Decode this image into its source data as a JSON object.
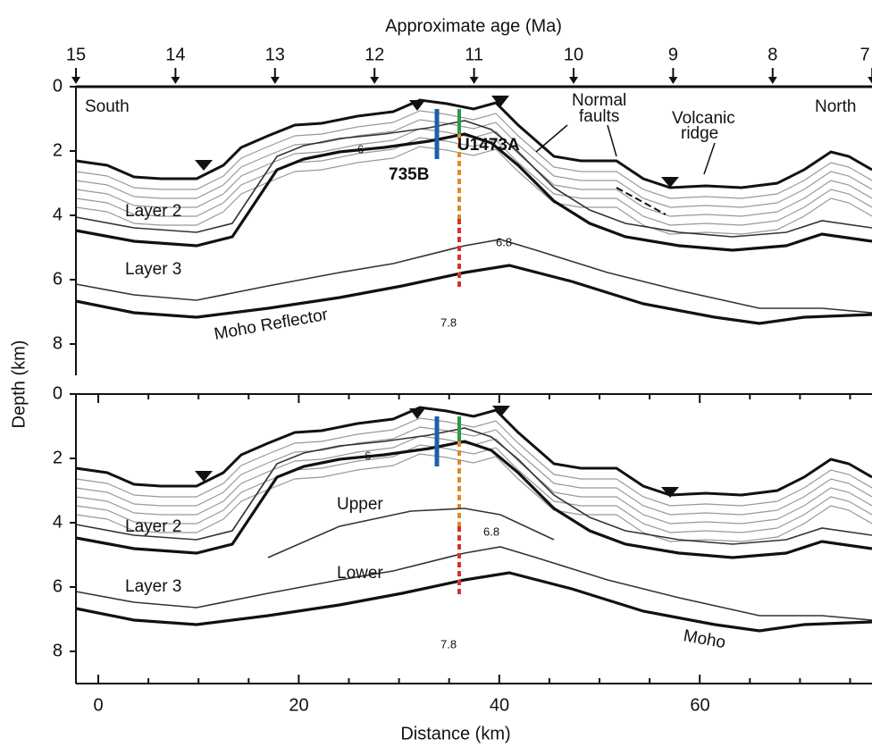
{
  "axes": {
    "top_label": "Approximate age (Ma)",
    "ages": [
      15,
      14,
      13,
      12,
      11,
      10,
      9,
      8,
      7
    ],
    "y_label": "Depth (km)",
    "depths": [
      0,
      2,
      4,
      6,
      8
    ],
    "x_label": "Distance (km)",
    "distances": [
      0,
      20,
      40,
      60
    ]
  },
  "top_panel": {
    "south": "South",
    "north": "North",
    "layer2": "Layer 2",
    "layer3": "Layer 3",
    "moho": "Moho Reflector",
    "vel_mantle": "7.8",
    "vel_6": "6",
    "vel_68": "6.8",
    "hole_735b": "735B",
    "hole_u1473a": "U1473A",
    "faults_1": "Normal",
    "faults_2": "faults",
    "ridge_1": "Volcanic",
    "ridge_2": "ridge"
  },
  "bottom_panel": {
    "layer2": "Layer 2",
    "layer3": "Layer 3",
    "upper": "Upper",
    "lower": "Lower",
    "moho": "Moho",
    "vel_mantle": "7.8",
    "vel_6": "6",
    "vel_68": "6.8"
  }
}
